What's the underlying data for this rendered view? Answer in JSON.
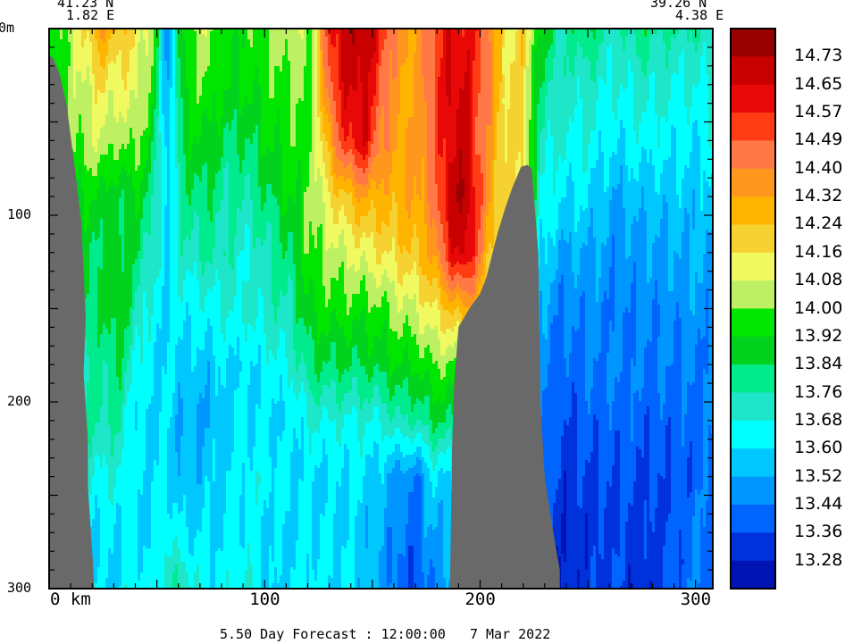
{
  "header": {
    "left_lat": "41.23 N",
    "left_lon": "1.82 E",
    "right_lat": "39.26 N",
    "right_lon": "4.38 E"
  },
  "footer": {
    "caption": "5.50 Day Forecast : 12:00:00   7 Mar 2022"
  },
  "chart_data": {
    "type": "heatmap",
    "title": "",
    "xlabel": "km",
    "ylabel": "",
    "xlim": [
      0,
      308
    ],
    "ylim": [
      300,
      0
    ],
    "x_ticks": [
      0,
      100,
      200,
      300
    ],
    "x_tick_labels": [
      "0 km",
      "100",
      "200",
      "300"
    ],
    "y_ticks": [
      0,
      100,
      200,
      300
    ],
    "y_tick_labels": [
      "0m",
      "100",
      "200",
      "300"
    ],
    "colorbar": {
      "labels": [
        "14.73",
        "14.65",
        "14.57",
        "14.49",
        "14.40",
        "14.32",
        "14.24",
        "14.16",
        "14.08",
        "14.00",
        "13.92",
        "13.84",
        "13.76",
        "13.68",
        "13.60",
        "13.52",
        "13.44",
        "13.36",
        "13.28"
      ],
      "colors": [
        "#990000",
        "#c80000",
        "#e80808",
        "#ff3c14",
        "#ff7846",
        "#ff961e",
        "#ffb400",
        "#f5d232",
        "#f0fa60",
        "#bef064",
        "#00e600",
        "#00d21e",
        "#00eb8c",
        "#1ee6c8",
        "#00ffff",
        "#00c8ff",
        "#0096ff",
        "#0064ff",
        "#0032dc",
        "#0014b4"
      ]
    },
    "terrain": {
      "color": "#696969",
      "left_coast": [
        [
          0,
          14
        ],
        [
          2,
          16
        ],
        [
          5,
          25
        ],
        [
          8,
          40
        ],
        [
          12,
          75
        ],
        [
          15,
          105
        ],
        [
          17,
          155
        ],
        [
          16,
          185
        ],
        [
          18,
          220
        ],
        [
          18,
          245
        ],
        [
          20,
          280
        ],
        [
          21,
          300
        ]
      ],
      "seamount": [
        [
          186,
          300
        ],
        [
          187,
          225
        ],
        [
          188,
          190
        ],
        [
          190,
          160
        ],
        [
          195,
          150
        ],
        [
          200,
          142
        ],
        [
          203,
          133
        ],
        [
          208,
          110
        ],
        [
          212,
          95
        ],
        [
          215,
          85
        ],
        [
          219,
          74
        ],
        [
          222,
          73
        ],
        [
          224,
          75
        ],
        [
          227,
          120
        ],
        [
          228,
          200
        ],
        [
          230,
          240
        ],
        [
          234,
          270
        ],
        [
          237,
          290
        ],
        [
          237,
          300
        ]
      ]
    },
    "field_columns": [
      {
        "x": 0,
        "v": [
          13.92,
          13.92,
          13.92,
          13.92,
          13.92,
          13.84,
          13.76,
          13.68,
          13.68,
          13.6,
          13.6
        ]
      },
      {
        "x": 12,
        "v": [
          14.08,
          14.04,
          14.0,
          13.92,
          13.84,
          13.84,
          13.76,
          13.76,
          13.68,
          13.6,
          13.6
        ]
      },
      {
        "x": 24,
        "v": [
          14.32,
          14.16,
          14.08,
          13.92,
          13.84,
          13.84,
          13.76,
          13.76,
          13.68,
          13.6,
          13.6
        ]
      },
      {
        "x": 32,
        "v": [
          14.24,
          14.12,
          14.0,
          13.84,
          13.88,
          13.92,
          13.84,
          13.76,
          13.68,
          13.6,
          13.6
        ]
      },
      {
        "x": 40,
        "v": [
          14.16,
          14.12,
          14.04,
          13.92,
          13.84,
          13.76,
          13.68,
          13.6,
          13.6,
          13.6,
          13.68
        ]
      },
      {
        "x": 48,
        "v": [
          14.04,
          13.96,
          13.88,
          13.8,
          13.72,
          13.64,
          13.6,
          13.6,
          13.6,
          13.6,
          13.6
        ]
      },
      {
        "x": 55,
        "v": [
          13.44,
          13.48,
          13.52,
          13.56,
          13.6,
          13.6,
          13.6,
          13.6,
          13.6,
          13.68,
          13.76
        ]
      },
      {
        "x": 62,
        "v": [
          13.92,
          13.92,
          13.88,
          13.8,
          13.72,
          13.64,
          13.56,
          13.52,
          13.52,
          13.6,
          13.76
        ]
      },
      {
        "x": 72,
        "v": [
          14.08,
          14.0,
          13.92,
          13.84,
          13.76,
          13.64,
          13.56,
          13.52,
          13.56,
          13.6,
          13.64
        ]
      },
      {
        "x": 82,
        "v": [
          13.92,
          13.92,
          13.84,
          13.76,
          13.76,
          13.68,
          13.6,
          13.56,
          13.6,
          13.6,
          13.64
        ]
      },
      {
        "x": 92,
        "v": [
          13.96,
          13.92,
          13.84,
          13.76,
          13.68,
          13.68,
          13.6,
          13.6,
          13.64,
          13.64,
          13.68
        ]
      },
      {
        "x": 102,
        "v": [
          14.0,
          13.96,
          13.92,
          13.84,
          13.76,
          13.72,
          13.64,
          13.6,
          13.64,
          13.6,
          13.56
        ]
      },
      {
        "x": 112,
        "v": [
          14.08,
          14.0,
          13.96,
          13.92,
          13.84,
          13.76,
          13.68,
          13.6,
          13.6,
          13.6,
          13.6
        ]
      },
      {
        "x": 122,
        "v": [
          14.0,
          14.0,
          14.0,
          14.0,
          14.0,
          13.92,
          13.84,
          13.68,
          13.6,
          13.6,
          13.64
        ]
      },
      {
        "x": 130,
        "v": [
          14.57,
          14.49,
          14.32,
          14.16,
          14.04,
          13.96,
          13.84,
          13.68,
          13.6,
          13.6,
          13.6
        ]
      },
      {
        "x": 138,
        "v": [
          14.69,
          14.65,
          14.57,
          14.24,
          14.08,
          13.96,
          13.84,
          13.68,
          13.6,
          13.6,
          13.6
        ]
      },
      {
        "x": 146,
        "v": [
          14.73,
          14.69,
          14.65,
          14.32,
          14.12,
          13.96,
          13.84,
          13.68,
          13.6,
          13.56,
          13.56
        ]
      },
      {
        "x": 154,
        "v": [
          14.57,
          14.49,
          14.4,
          14.28,
          14.16,
          13.98,
          13.88,
          13.68,
          13.56,
          13.52,
          13.52
        ]
      },
      {
        "x": 162,
        "v": [
          14.36,
          14.32,
          14.32,
          14.28,
          14.2,
          14.04,
          13.92,
          13.76,
          13.48,
          13.44,
          13.4
        ]
      },
      {
        "x": 170,
        "v": [
          14.32,
          14.32,
          14.32,
          14.32,
          14.24,
          14.08,
          13.92,
          13.76,
          13.44,
          13.4,
          13.36
        ]
      },
      {
        "x": 178,
        "v": [
          14.49,
          14.49,
          14.45,
          14.4,
          14.32,
          14.16,
          14.0,
          13.84,
          13.6,
          13.52,
          13.44
        ]
      },
      {
        "x": 186,
        "v": [
          14.65,
          14.65,
          14.65,
          14.69,
          14.6,
          14.24,
          14.0,
          13.84,
          13.6,
          13.52,
          13.5
        ]
      },
      {
        "x": 194,
        "v": [
          14.6,
          14.65,
          14.69,
          14.73,
          14.69,
          14.32,
          14.0,
          13.84,
          13.6,
          13.5,
          13.5
        ]
      },
      {
        "x": 202,
        "v": [
          14.49,
          14.45,
          14.4,
          14.4,
          14.32,
          14.2,
          14.0,
          13.84,
          13.6,
          13.5,
          13.5
        ]
      },
      {
        "x": 212,
        "v": [
          14.12,
          14.16,
          14.16,
          14.16,
          14.12,
          14.04,
          13.92,
          13.76,
          13.6,
          13.5,
          13.5
        ]
      },
      {
        "x": 220,
        "v": [
          14.2,
          14.2,
          14.2,
          14.16,
          14.08,
          13.96,
          13.84,
          13.72,
          13.6,
          13.5,
          13.5
        ]
      },
      {
        "x": 228,
        "v": [
          13.92,
          13.8,
          13.72,
          13.68,
          13.6,
          13.52,
          13.48,
          13.44,
          13.44,
          13.4,
          13.36
        ]
      },
      {
        "x": 238,
        "v": [
          13.76,
          13.72,
          13.68,
          13.6,
          13.52,
          13.44,
          13.4,
          13.36,
          13.32,
          13.3,
          13.28
        ]
      },
      {
        "x": 250,
        "v": [
          13.84,
          13.72,
          13.68,
          13.6,
          13.52,
          13.48,
          13.44,
          13.4,
          13.36,
          13.32,
          13.32
        ]
      },
      {
        "x": 262,
        "v": [
          13.72,
          13.68,
          13.6,
          13.52,
          13.48,
          13.44,
          13.44,
          13.4,
          13.36,
          13.36,
          13.36
        ]
      },
      {
        "x": 275,
        "v": [
          13.8,
          13.72,
          13.64,
          13.56,
          13.5,
          13.46,
          13.44,
          13.4,
          13.36,
          13.32,
          13.28
        ]
      },
      {
        "x": 288,
        "v": [
          13.76,
          13.68,
          13.64,
          13.56,
          13.5,
          13.46,
          13.44,
          13.4,
          13.38,
          13.36,
          13.36
        ]
      },
      {
        "x": 300,
        "v": [
          13.76,
          13.68,
          13.6,
          13.56,
          13.52,
          13.48,
          13.44,
          13.4,
          13.4,
          13.44,
          13.44
        ]
      },
      {
        "x": 308,
        "v": [
          13.72,
          13.68,
          13.64,
          13.56,
          13.52,
          13.48,
          13.44,
          13.44,
          13.44,
          13.44,
          13.44
        ]
      }
    ]
  }
}
